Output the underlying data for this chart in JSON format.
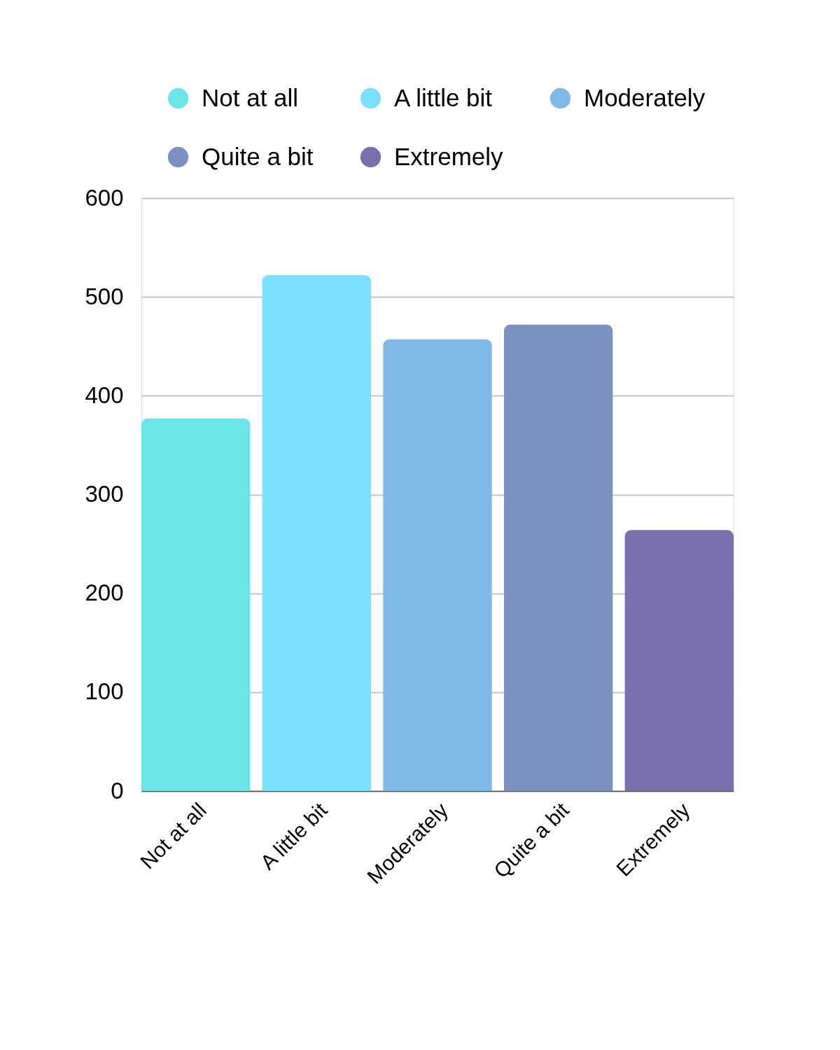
{
  "chart_data": {
    "type": "bar",
    "categories": [
      "Not at all",
      "A little bit",
      "Moderately",
      "Quite a bit",
      "Extremely"
    ],
    "series": [
      {
        "name": "Not at all",
        "color": "#6ce5e8",
        "values": [
          377,
          null,
          null,
          null,
          null
        ]
      },
      {
        "name": "A little bit",
        "color": "#7ae0fe",
        "values": [
          null,
          522,
          null,
          null,
          null
        ]
      },
      {
        "name": "Moderately",
        "color": "#7fb9e6",
        "values": [
          null,
          null,
          457,
          null,
          null
        ]
      },
      {
        "name": "Quite a bit",
        "color": "#7b91c2",
        "values": [
          null,
          null,
          null,
          472,
          null
        ]
      },
      {
        "name": "Extremely",
        "color": "#7b70ad",
        "values": [
          null,
          null,
          null,
          null,
          264
        ]
      }
    ],
    "ylim": [
      0,
      600
    ],
    "yticks": [
      0,
      100,
      200,
      300,
      400,
      500,
      600
    ],
    "grid": "y",
    "legend": "top"
  }
}
